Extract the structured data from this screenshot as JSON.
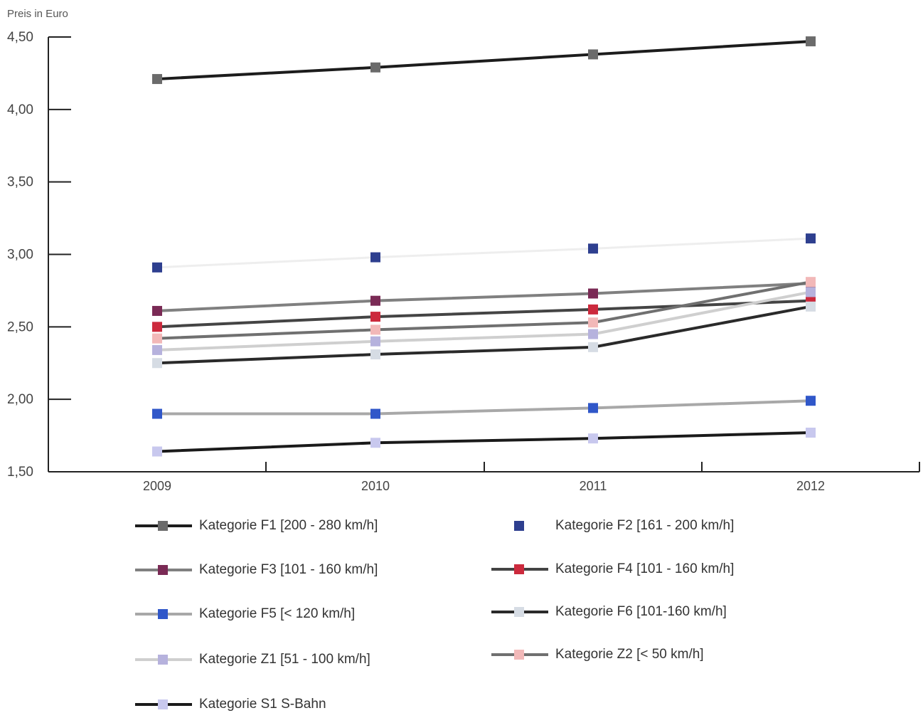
{
  "chart_data": {
    "type": "line",
    "ylabel": "Preis in Euro",
    "xlabel": "",
    "categories": [
      "2009",
      "2010",
      "2011",
      "2012"
    ],
    "y_ticks": [
      "1,50",
      "2,00",
      "2,50",
      "3,00",
      "3,50",
      "4,00",
      "4,50"
    ],
    "y_tick_values": [
      1.5,
      2.0,
      2.5,
      3.0,
      3.5,
      4.0,
      4.5
    ],
    "ylim": [
      1.5,
      4.5
    ],
    "grid": false,
    "legend_position": "bottom",
    "series": [
      {
        "name": "Kategorie F1 [200 - 280 km/h]",
        "values": [
          4.21,
          4.29,
          4.38,
          4.47
        ],
        "line_color": "#1c1c1c",
        "marker_color": "#6b6b6b",
        "show_line": true
      },
      {
        "name": "Kategorie F2 [161 - 200 km/h]",
        "values": [
          2.91,
          2.98,
          3.04,
          3.11
        ],
        "line_color": "#eeeeee",
        "marker_color": "#2e3f8f",
        "show_line": false
      },
      {
        "name": "Kategorie F3 [101 - 160 km/h]",
        "values": [
          2.61,
          2.68,
          2.73,
          2.8
        ],
        "line_color": "#808080",
        "marker_color": "#7a2a55",
        "show_line": true
      },
      {
        "name": "Kategorie F4 [101 - 160 km/h]",
        "values": [
          2.5,
          2.57,
          2.62,
          2.68
        ],
        "line_color": "#444444",
        "marker_color": "#cc2a3d",
        "show_line": true
      },
      {
        "name": "Kategorie F5 [< 120 km/h]",
        "values": [
          1.9,
          1.9,
          1.94,
          1.99
        ],
        "line_color": "#a8a8a8",
        "marker_color": "#3057c9",
        "show_line": true
      },
      {
        "name": "Kategorie F6 [101-160 km/h]",
        "values": [
          2.25,
          2.31,
          2.36,
          2.64
        ],
        "line_color": "#2a2a2a",
        "marker_color": "#d6dce4",
        "show_line": true
      },
      {
        "name": "Kategorie Z1 [51 - 100 km/h]",
        "values": [
          2.34,
          2.4,
          2.45,
          2.74
        ],
        "line_color": "#cfcfcf",
        "marker_color": "#b6b2dd",
        "show_line": true
      },
      {
        "name": "Kategorie Z2 [< 50 km/h]",
        "values": [
          2.42,
          2.48,
          2.53,
          2.81
        ],
        "line_color": "#707070",
        "marker_color": "#f2b8b8",
        "show_line": true
      },
      {
        "name": "Kategorie S1 S-Bahn",
        "values": [
          1.64,
          1.7,
          1.73,
          1.77
        ],
        "line_color": "#1a1a1a",
        "marker_color": "#c8c8ee",
        "show_line": true
      }
    ]
  }
}
